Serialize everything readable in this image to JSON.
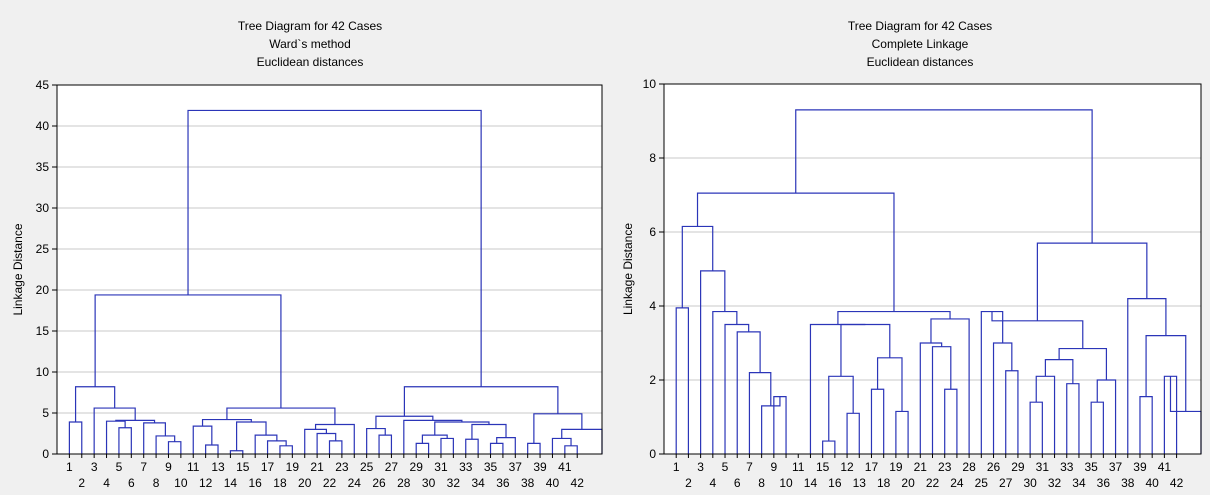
{
  "chart_data": [
    {
      "type": "dendrogram",
      "title": "Tree Diagram for 42 Cases",
      "subtitle": [
        "Ward`s method",
        "Euclidean distances"
      ],
      "ylabel": "Linkage Distance",
      "ylim": [
        0,
        45
      ],
      "yticks": [
        0,
        5,
        10,
        15,
        20,
        25,
        30,
        35,
        40,
        45
      ],
      "grid": true,
      "leaf_labels": [
        "1",
        "2",
        "3",
        "4",
        "5",
        "6",
        "7",
        "8",
        "9",
        "10",
        "11",
        "12",
        "13",
        "14",
        "15",
        "16",
        "17",
        "18",
        "19",
        "20",
        "21",
        "22",
        "23",
        "24",
        "25",
        "26",
        "27",
        "28",
        "29",
        "30",
        "31",
        "32",
        "33",
        "34",
        "35",
        "36",
        "37",
        "38",
        "39",
        "40",
        "41",
        "42"
      ],
      "merges": [
        {
          "id": "a1",
          "left": 1,
          "right": 2,
          "height": 3.9
        },
        {
          "id": "a2",
          "left": 5,
          "right": 6,
          "height": 3.2
        },
        {
          "id": "a3",
          "left": 4,
          "right": "a2",
          "height": 4.0
        },
        {
          "id": "a4",
          "left": 9,
          "right": 10,
          "height": 1.5
        },
        {
          "id": "a5",
          "left": 8,
          "right": "a4",
          "height": 2.2
        },
        {
          "id": "a6",
          "left": 7,
          "right": "a5",
          "height": 3.8
        },
        {
          "id": "a7",
          "left": "a3",
          "right": "a6",
          "height": 4.1
        },
        {
          "id": "a8",
          "left": 3,
          "right": "a7",
          "height": 5.6
        },
        {
          "id": "a9",
          "left": "a1",
          "right": "a8",
          "height": 8.2
        },
        {
          "id": "b1",
          "left": 12,
          "right": 13,
          "height": 1.1
        },
        {
          "id": "b2",
          "left": 11,
          "right": "b1",
          "height": 3.4
        },
        {
          "id": "b3",
          "left": 14,
          "right": 15,
          "height": 0.4
        },
        {
          "id": "b4",
          "left": 18,
          "right": 19,
          "height": 1.0
        },
        {
          "id": "b5",
          "left": 17,
          "right": "b4",
          "height": 1.6
        },
        {
          "id": "b6",
          "left": 16,
          "right": "b5",
          "height": 2.3
        },
        {
          "id": "b7",
          "left": "b3",
          "right": "b6",
          "height": 3.9
        },
        {
          "id": "b8",
          "left": "b2",
          "right": "b7",
          "height": 4.2
        },
        {
          "id": "b9",
          "left": 22,
          "right": 23,
          "height": 1.6
        },
        {
          "id": "b10",
          "left": 21,
          "right": "b9",
          "height": 2.5
        },
        {
          "id": "b11",
          "left": 20,
          "right": "b10",
          "height": 3.0
        },
        {
          "id": "b12",
          "left": "b11",
          "right": 24,
          "height": 3.6
        },
        {
          "id": "b13",
          "left": "b8",
          "right": "b12",
          "height": 5.6
        },
        {
          "id": "a10",
          "left": "a9",
          "right": "b13",
          "height": 19.4
        },
        {
          "id": "c1",
          "left": 26,
          "right": 27,
          "height": 2.3
        },
        {
          "id": "c2",
          "left": 25,
          "right": "c1",
          "height": 3.1
        },
        {
          "id": "c3",
          "left": 29,
          "right": 30,
          "height": 1.3
        },
        {
          "id": "c4",
          "left": 31,
          "right": 32,
          "height": 1.9
        },
        {
          "id": "c5",
          "left": "c3",
          "right": "c4",
          "height": 2.3
        },
        {
          "id": "c6",
          "left": 33,
          "right": 34,
          "height": 1.8
        },
        {
          "id": "c7",
          "left": 35,
          "right": 36,
          "height": 1.3
        },
        {
          "id": "c8",
          "left": "c7",
          "right": 37,
          "height": 2.0
        },
        {
          "id": "c9",
          "left": "c6",
          "right": "c8",
          "height": 3.6
        },
        {
          "id": "c10",
          "left": "c5",
          "right": "c9",
          "height": 3.9
        },
        {
          "id": "c11",
          "left": 28,
          "right": "c10",
          "height": 4.1
        },
        {
          "id": "c12",
          "left": "c2",
          "right": "c11",
          "height": 4.6
        },
        {
          "id": "c13",
          "left": 38,
          "right": 39,
          "height": 1.3
        },
        {
          "id": "c14",
          "left": 41,
          "right": 42,
          "height": 1.0
        },
        {
          "id": "c15",
          "left": 40,
          "right": "c14",
          "height": 1.9
        },
        {
          "id": "c16",
          "left": "c15",
          "right": 43,
          "height": 3.0
        },
        {
          "id": "c17",
          "left": "c13",
          "right": "c16",
          "height": 4.9
        },
        {
          "id": "c18",
          "left": "c12",
          "right": "c17",
          "height": 8.2
        },
        {
          "id": "root",
          "left": "a10",
          "right": "c18",
          "height": 41.9
        }
      ]
    },
    {
      "type": "dendrogram",
      "title": "Tree Diagram for 42 Cases",
      "subtitle": [
        "Complete Linkage",
        "Euclidean distances"
      ],
      "ylabel": "Linkage Distance",
      "ylim": [
        0,
        10
      ],
      "yticks": [
        0,
        2,
        4,
        6,
        8,
        10
      ],
      "grid": true,
      "leaf_labels": [
        "1",
        "2",
        "3",
        "4",
        "5",
        "6",
        "7",
        "8",
        "9",
        "10",
        "11",
        "14",
        "15",
        "16",
        "12",
        "13",
        "17",
        "18",
        "19",
        "20",
        "21",
        "22",
        "23",
        "24",
        "28",
        "25",
        "26",
        "27",
        "29",
        "30",
        "31",
        "32",
        "33",
        "34",
        "35",
        "36",
        "37",
        "38",
        "39",
        "40",
        "41",
        "42"
      ],
      "merges": [
        {
          "id": "m1",
          "left": 9,
          "right": 10,
          "height": 1.55
        },
        {
          "id": "m2",
          "left": 8,
          "right": "m1",
          "height": 1.3
        },
        {
          "id": "m3",
          "left": 7,
          "right": "m2",
          "height": 2.2
        },
        {
          "id": "m4",
          "left": 6,
          "right": "m3",
          "height": 3.3
        },
        {
          "id": "m5",
          "left": 5,
          "right": "m4",
          "height": 3.5
        },
        {
          "id": "m6",
          "left": 4,
          "right": "m5",
          "height": 3.85
        },
        {
          "id": "m7",
          "left": 3,
          "right": "m6",
          "height": 4.95
        },
        {
          "id": "m8",
          "left": 1,
          "right": 2,
          "height": 3.95
        },
        {
          "id": "m9",
          "left": "m8",
          "right": "m7",
          "height": 6.15
        },
        {
          "id": "n1",
          "left": 13,
          "right": 14,
          "height": 0.35
        },
        {
          "id": "n2",
          "left": 15,
          "right": 16,
          "height": 1.1
        },
        {
          "id": "n3",
          "left": "n1",
          "right": "n2",
          "height": 2.1
        },
        {
          "id": "n4",
          "left": 17,
          "right": 18,
          "height": 1.75
        },
        {
          "id": "n5",
          "left": 19,
          "right": 20,
          "height": 1.15
        },
        {
          "id": "n6",
          "left": "n4",
          "right": "n5",
          "height": 2.6
        },
        {
          "id": "n7",
          "left": "n3",
          "right": "n6",
          "height": 3.5
        },
        {
          "id": "n8",
          "left": 12,
          "right": "n7",
          "height": 3.5
        },
        {
          "id": "n9",
          "left": 23,
          "right": 24,
          "height": 1.75
        },
        {
          "id": "n10",
          "left": 22,
          "right": "n9",
          "height": 2.9
        },
        {
          "id": "n11",
          "left": 21,
          "right": "n10",
          "height": 3.0
        },
        {
          "id": "n12",
          "left": "n11",
          "right": 25,
          "height": 3.65
        },
        {
          "id": "n13",
          "left": "n8",
          "right": "n12",
          "height": 3.85
        },
        {
          "id": "n14",
          "left": "m9",
          "right": "n13",
          "height": 7.05
        },
        {
          "id": "p1",
          "left": 28,
          "right": 29,
          "height": 2.25
        },
        {
          "id": "p2",
          "left": 27,
          "right": "p1",
          "height": 3.0
        },
        {
          "id": "p3",
          "left": 26,
          "right": "p2",
          "height": 3.85
        },
        {
          "id": "p4",
          "left": 30,
          "right": 31,
          "height": 1.4
        },
        {
          "id": "p5",
          "left": "p4",
          "right": 32,
          "height": 2.1
        },
        {
          "id": "p6",
          "left": 33,
          "right": 34,
          "height": 1.9
        },
        {
          "id": "p7",
          "left": "p5",
          "right": "p6",
          "height": 2.55
        },
        {
          "id": "p8",
          "left": 35,
          "right": 36,
          "height": 1.4
        },
        {
          "id": "p9",
          "left": "p8",
          "right": 37,
          "height": 2.0
        },
        {
          "id": "p10",
          "left": "p7",
          "right": "p9",
          "height": 2.85
        },
        {
          "id": "p11",
          "left": "p3",
          "right": "p10",
          "height": 3.6
        },
        {
          "id": "p12",
          "left": 39,
          "right": 40,
          "height": 1.55
        },
        {
          "id": "p13",
          "left": 41,
          "right": 42,
          "height": 2.1
        },
        {
          "id": "p14",
          "left": "p13",
          "right": 43,
          "height": 1.15
        },
        {
          "id": "p15",
          "left": "p12",
          "right": "p14",
          "height": 3.2
        },
        {
          "id": "p16",
          "left": 38,
          "right": "p15",
          "height": 4.2
        },
        {
          "id": "p17",
          "left": "p11",
          "right": "p16",
          "height": 5.7
        },
        {
          "id": "root",
          "left": "n14",
          "right": "p17",
          "height": 9.3
        }
      ]
    }
  ]
}
